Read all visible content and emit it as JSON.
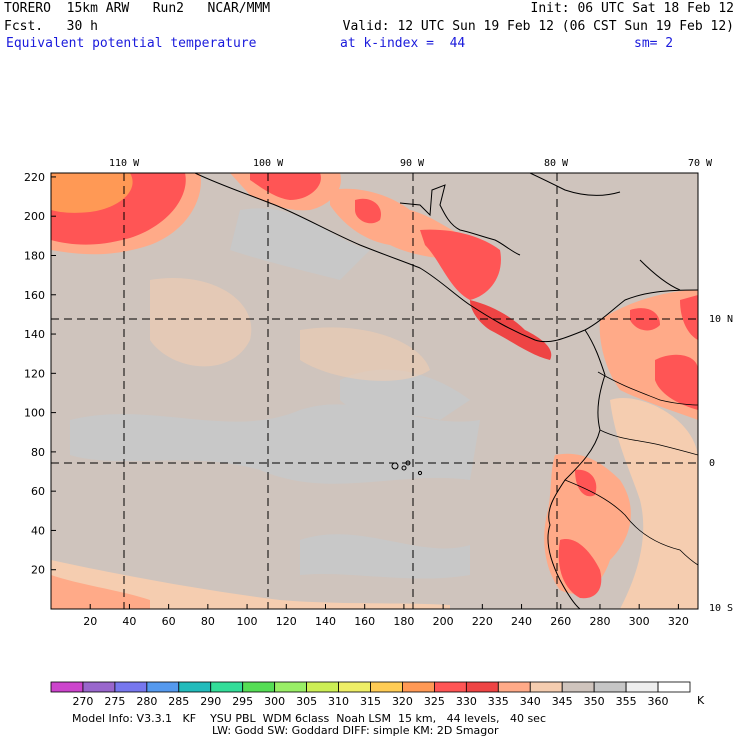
{
  "header": {
    "top_left": "TORERO  15km ARW   Run2   NCAR/MMM",
    "fcst": "Fcst.   30 h",
    "init": "Init: 06 UTC Sat 18 Feb 12",
    "valid": "Valid: 12 UTC Sun 19 Feb 12 (06 CST Sun 19 Feb 12)",
    "field": "Equivalent potential temperature",
    "level": "at k-index =  44",
    "sm": "sm= 2"
  },
  "map": {
    "lon_labels": [
      "110 W",
      "100 W",
      "90 W",
      "80 W",
      "70 W"
    ],
    "lat_labels": [
      "10 N",
      "0",
      "10 S"
    ],
    "y_ticks": [
      "220",
      "200",
      "180",
      "160",
      "140",
      "120",
      "100",
      "80",
      "60",
      "40",
      "20"
    ],
    "x_ticks": [
      "20",
      "40",
      "60",
      "80",
      "100",
      "120",
      "140",
      "160",
      "180",
      "200",
      "220",
      "240",
      "260",
      "280",
      "300",
      "320"
    ]
  },
  "colorbar": {
    "levels": [
      "270",
      "275",
      "280",
      "285",
      "290",
      "295",
      "300",
      "305",
      "310",
      "315",
      "320",
      "325",
      "330",
      "335",
      "340",
      "345",
      "350",
      "355",
      "360"
    ],
    "unit": "K",
    "colors": [
      "#cc44cc",
      "#9966cc",
      "#7777ee",
      "#5599ee",
      "#22bbbb",
      "#33dd99",
      "#55dd55",
      "#99ee66",
      "#ccee55",
      "#eeee66",
      "#ffcc55",
      "#ff9955",
      "#ff5555",
      "#ee4444",
      "#ffaa88",
      "#f5cdb0",
      "#cfc4bd",
      "#c6c6c6",
      "#eeeeee",
      "#ffffff"
    ]
  },
  "footer": {
    "line1": "Model Info: V3.3.1   KF    YSU PBL  WDM 6class  Noah LSM  15 km,   44 levels,   40 sec",
    "line2": "LW: Godd SW: Goddard DIFF: simple KM: 2D Smagor"
  }
}
